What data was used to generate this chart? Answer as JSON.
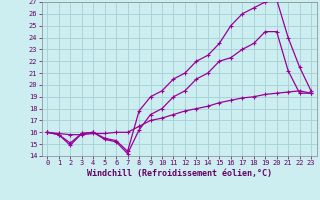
{
  "xlabel": "Windchill (Refroidissement éolien,°C)",
  "ylabel": "",
  "bg_color": "#cdeef0",
  "grid_color": "#aad4d8",
  "line_color": "#990099",
  "xlim": [
    -0.5,
    23.5
  ],
  "ylim": [
    14,
    27
  ],
  "xticks": [
    0,
    1,
    2,
    3,
    4,
    5,
    6,
    7,
    8,
    9,
    10,
    11,
    12,
    13,
    14,
    15,
    16,
    17,
    18,
    19,
    20,
    21,
    22,
    23
  ],
  "yticks": [
    14,
    15,
    16,
    17,
    18,
    19,
    20,
    21,
    22,
    23,
    24,
    25,
    26,
    27
  ],
  "line1_x": [
    0,
    1,
    2,
    3,
    4,
    5,
    6,
    7,
    8,
    9,
    10,
    11,
    12,
    13,
    14,
    15,
    16,
    17,
    18,
    19,
    20,
    21,
    22,
    23
  ],
  "line1_y": [
    16.0,
    15.8,
    14.9,
    15.9,
    16.0,
    15.4,
    15.2,
    14.2,
    16.2,
    17.5,
    18.0,
    19.0,
    19.5,
    20.5,
    21.0,
    22.0,
    22.3,
    23.0,
    23.5,
    24.5,
    24.5,
    21.2,
    19.3,
    19.3
  ],
  "line2_x": [
    0,
    1,
    2,
    3,
    4,
    5,
    6,
    7,
    8,
    9,
    10,
    11,
    12,
    13,
    14,
    15,
    16,
    17,
    18,
    19,
    20,
    21,
    22,
    23
  ],
  "line2_y": [
    16.0,
    15.8,
    15.1,
    15.9,
    16.0,
    15.5,
    15.3,
    14.4,
    17.8,
    19.0,
    19.5,
    20.5,
    21.0,
    22.0,
    22.5,
    23.5,
    25.0,
    26.0,
    26.5,
    27.0,
    27.2,
    24.0,
    21.5,
    19.5
  ],
  "line3_x": [
    0,
    1,
    2,
    3,
    4,
    5,
    6,
    7,
    8,
    9,
    10,
    11,
    12,
    13,
    14,
    15,
    16,
    17,
    18,
    19,
    20,
    21,
    22,
    23
  ],
  "line3_y": [
    16.0,
    15.9,
    15.8,
    15.8,
    15.9,
    15.9,
    16.0,
    16.0,
    16.5,
    17.0,
    17.2,
    17.5,
    17.8,
    18.0,
    18.2,
    18.5,
    18.7,
    18.9,
    19.0,
    19.2,
    19.3,
    19.4,
    19.5,
    19.3
  ]
}
